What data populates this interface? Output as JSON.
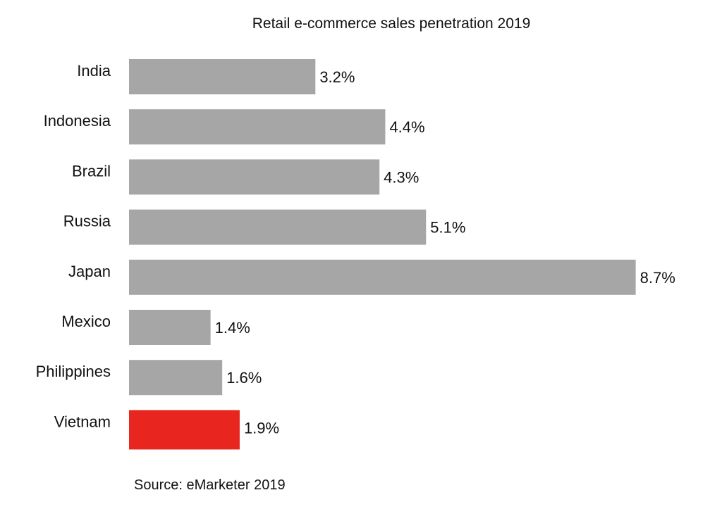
{
  "chart_data": {
    "type": "bar",
    "orientation": "horizontal",
    "title": "Retail e-commerce sales penetration 2019",
    "categories": [
      "India",
      "Indonesia",
      "Brazil",
      "Russia",
      "Japan",
      "Mexico",
      "Philippines",
      "Vietnam"
    ],
    "values": [
      3.2,
      4.4,
      4.3,
      5.1,
      8.7,
      1.4,
      1.6,
      1.9
    ],
    "data_labels": [
      "3.2%",
      "4.4%",
      "4.3%",
      "5.1%",
      "8.7%",
      "1.4%",
      "1.6%",
      "1.9%"
    ],
    "unit": "%",
    "highlight": "Vietnam",
    "colors": {
      "default": "#a6a6a6",
      "highlight": "#e8261f"
    },
    "xlabel": "",
    "ylabel": "",
    "grid": false,
    "legend": "none",
    "source": "Source: eMarketer 2019"
  }
}
